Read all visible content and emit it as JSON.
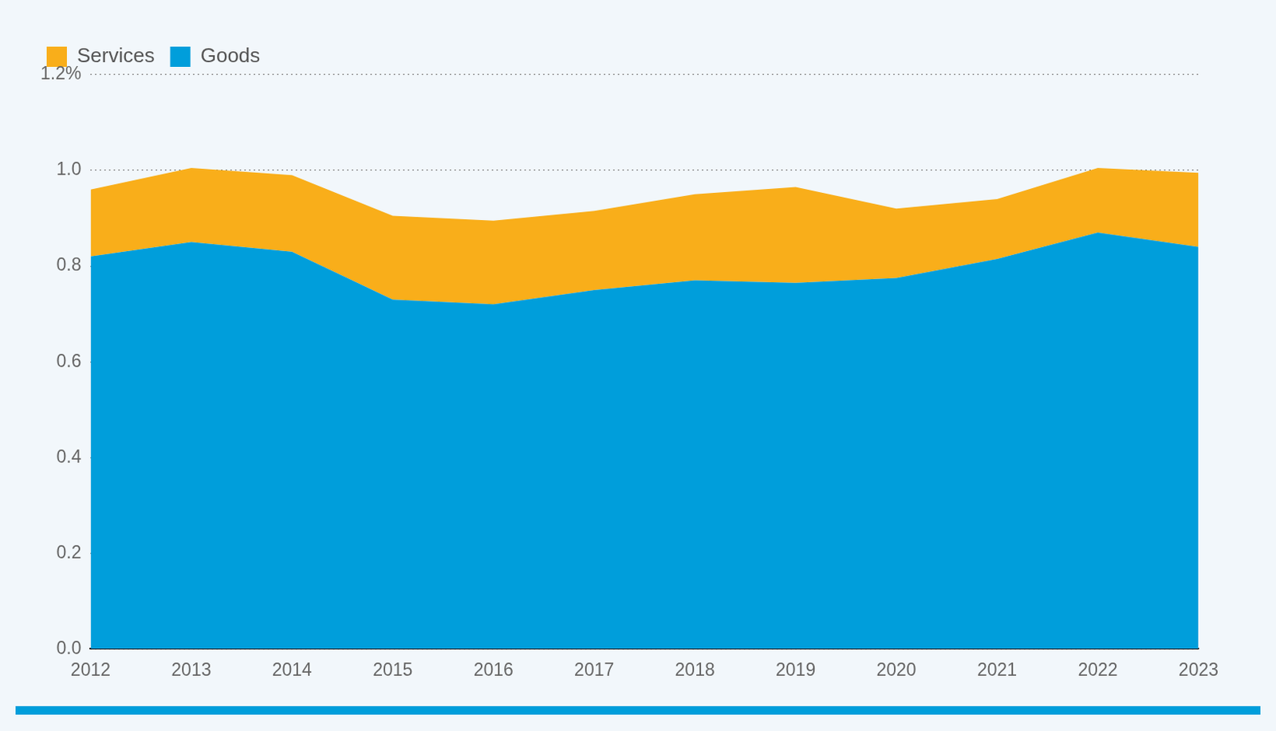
{
  "chart_data": {
    "type": "area",
    "categories": [
      "2012",
      "2013",
      "2014",
      "2015",
      "2016",
      "2017",
      "2018",
      "2019",
      "2020",
      "2021",
      "2022",
      "2023"
    ],
    "series": [
      {
        "name": "Goods",
        "color": "#009edb",
        "values": [
          0.82,
          0.85,
          0.83,
          0.73,
          0.72,
          0.75,
          0.77,
          0.765,
          0.775,
          0.815,
          0.87,
          0.84
        ]
      },
      {
        "name": "Services",
        "color": "#f9ae1a",
        "values": [
          0.14,
          0.155,
          0.16,
          0.175,
          0.175,
          0.165,
          0.18,
          0.2,
          0.145,
          0.125,
          0.135,
          0.155
        ]
      }
    ],
    "stacked": true,
    "ylim": [
      0,
      1.2
    ],
    "yticks": [
      {
        "value": 0,
        "label": "0.0"
      },
      0.2,
      0.4,
      0.6,
      0.8,
      {
        "value": 1,
        "label": "1.0"
      },
      {
        "value": 1.2,
        "label": "1.2%"
      }
    ],
    "grid": true,
    "legend": "top-left"
  }
}
